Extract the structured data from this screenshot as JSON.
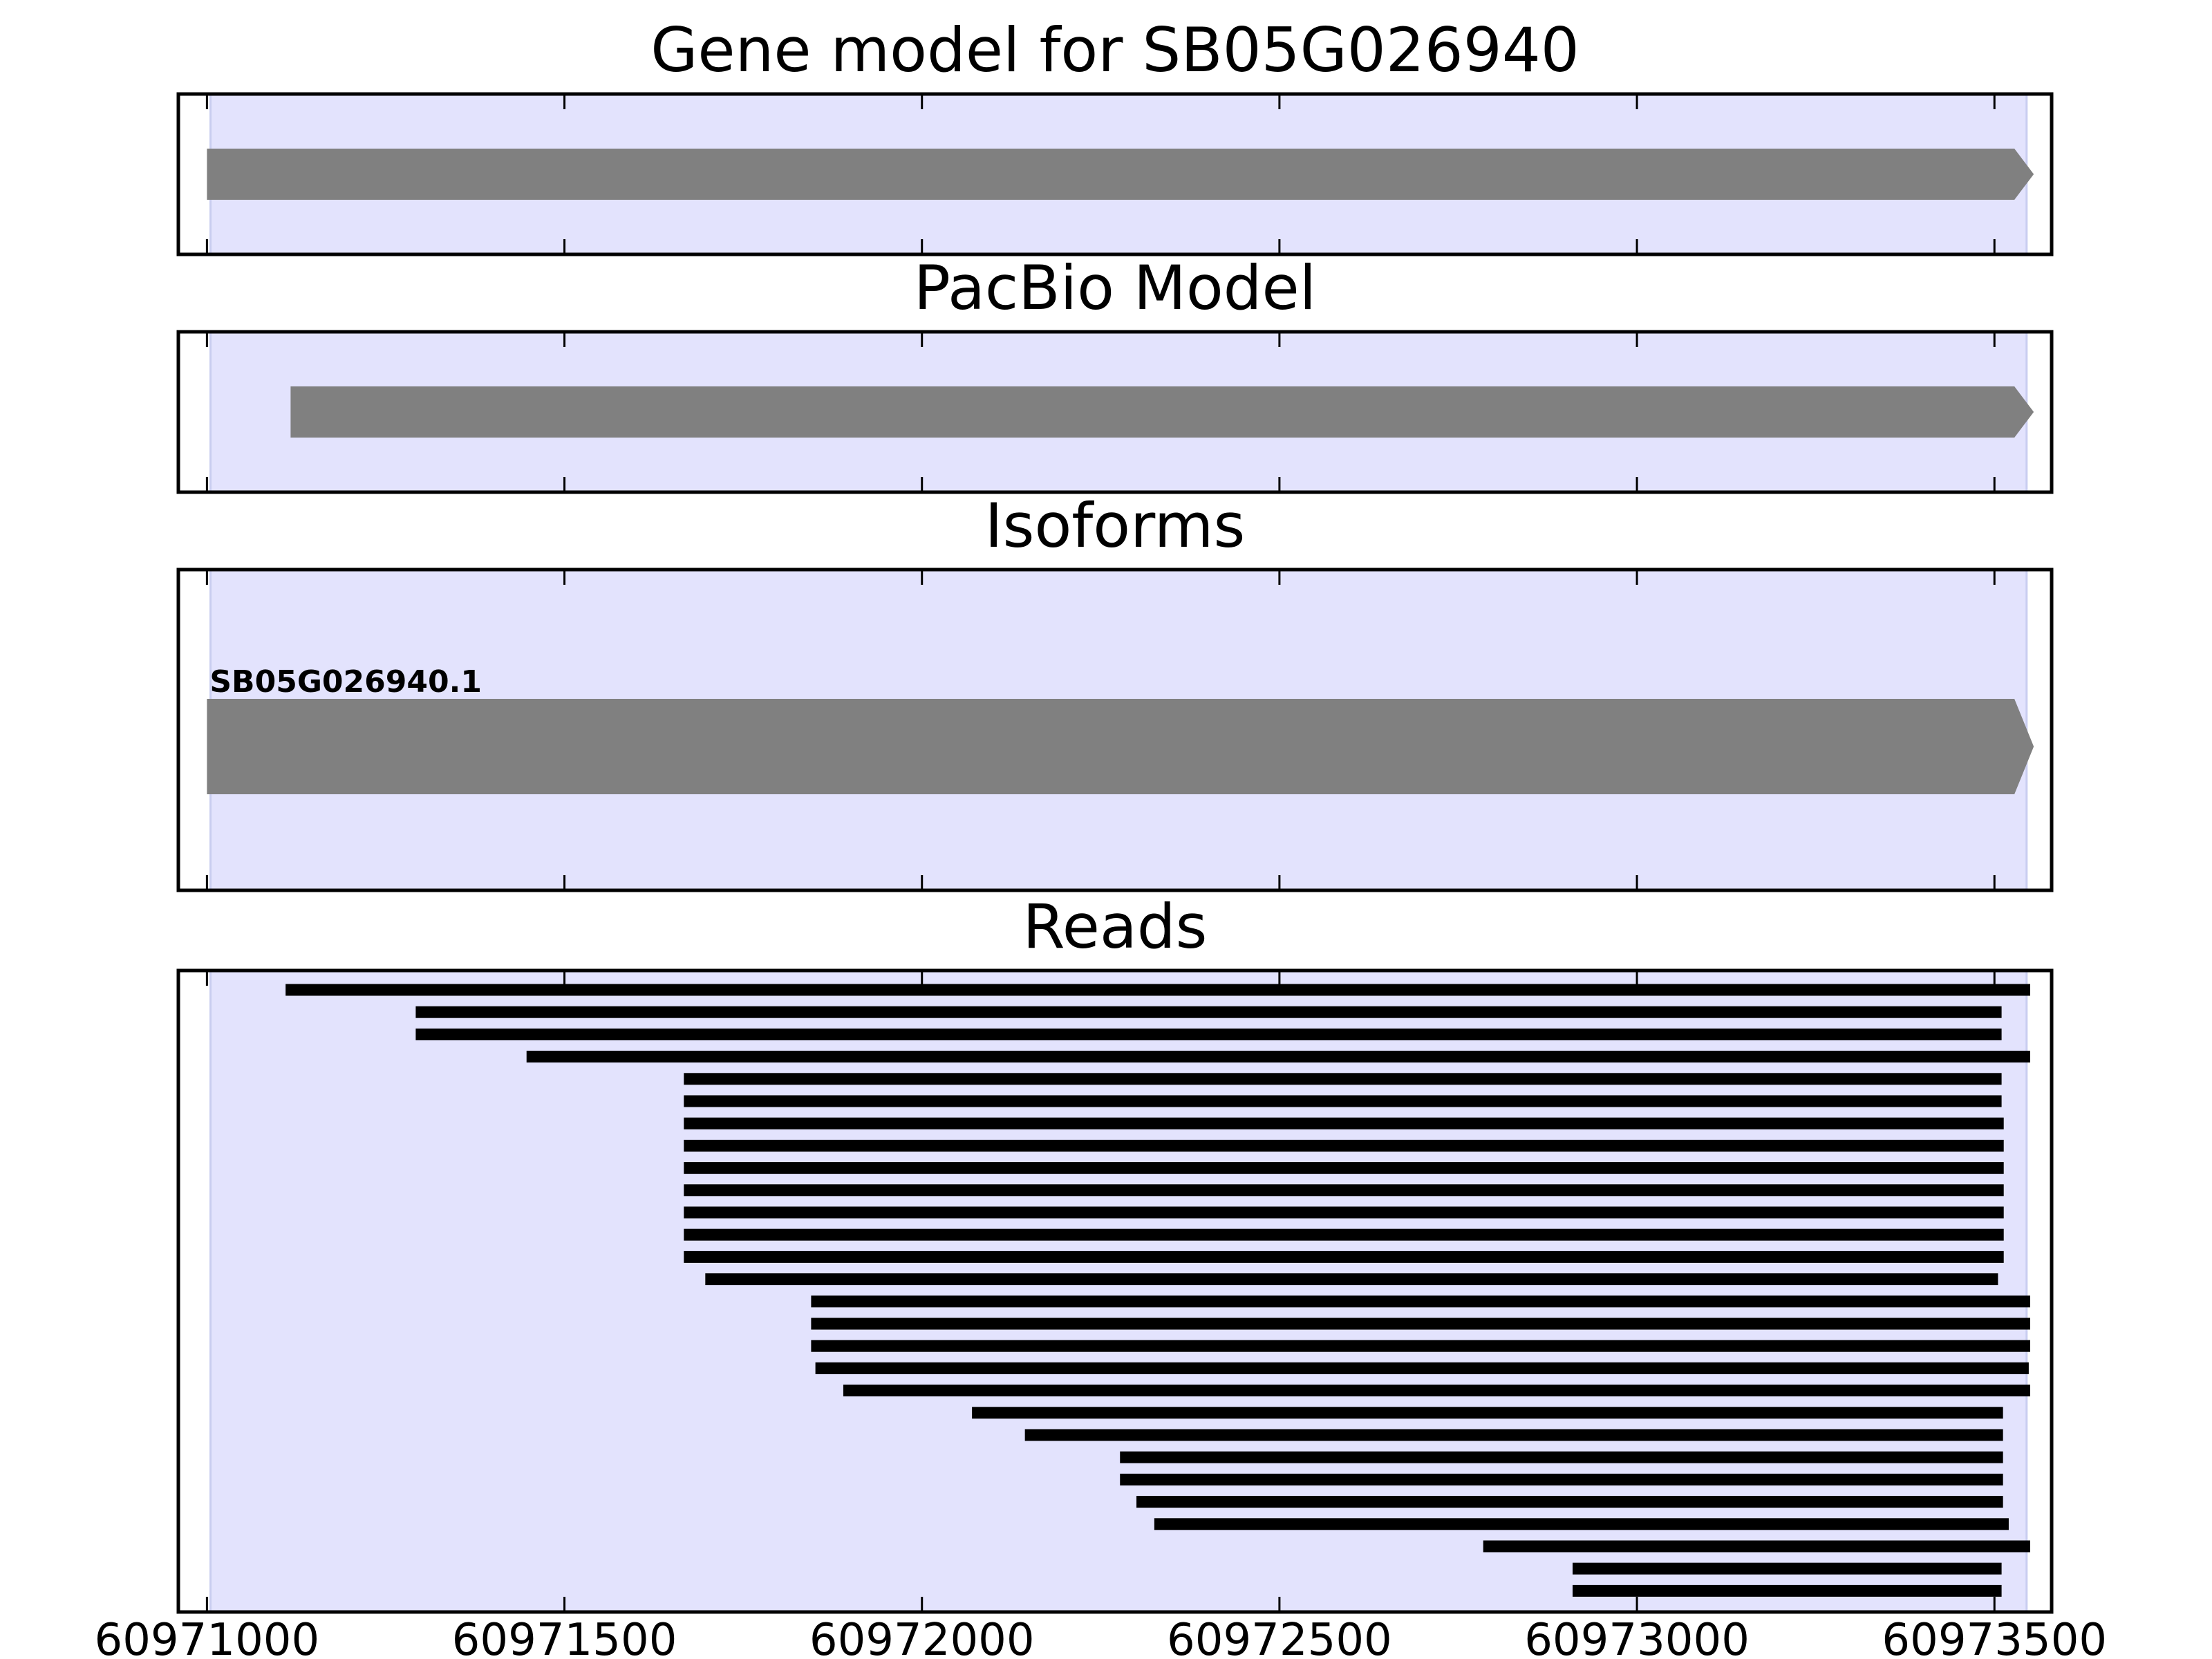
{
  "chart_data": {
    "type": "gene-track",
    "xlim": [
      60970960,
      60973580
    ],
    "x_ticks": [
      "60971000",
      "60971500",
      "60972000",
      "60972500",
      "60973000",
      "60973500"
    ],
    "shaded_region": {
      "start": 60971005,
      "end": 60973545,
      "color": "#e3e3fd",
      "edge_color": "#c9cdf0"
    },
    "feature_color": "#808080",
    "read_color": "#000000",
    "panels": [
      {
        "title": "Gene model for SB05G026940",
        "features": [
          {
            "start": 60971000,
            "end": 60973555,
            "strand": "+"
          }
        ]
      },
      {
        "title": "PacBio Model",
        "features": [
          {
            "start": 60971117,
            "end": 60973555,
            "strand": "+"
          }
        ]
      },
      {
        "title": "Isoforms",
        "features": [
          {
            "label": "SB05G026940.1",
            "start": 60971000,
            "end": 60973555,
            "strand": "+"
          }
        ]
      },
      {
        "title": "Reads",
        "reads": [
          {
            "start": 60971110,
            "end": 60973550
          },
          {
            "start": 60971292,
            "end": 60973510
          },
          {
            "start": 60971292,
            "end": 60973510
          },
          {
            "start": 60971447,
            "end": 60973550
          },
          {
            "start": 60971667,
            "end": 60973510
          },
          {
            "start": 60971667,
            "end": 60973510
          },
          {
            "start": 60971667,
            "end": 60973513
          },
          {
            "start": 60971667,
            "end": 60973513
          },
          {
            "start": 60971667,
            "end": 60973513
          },
          {
            "start": 60971667,
            "end": 60973513
          },
          {
            "start": 60971667,
            "end": 60973513
          },
          {
            "start": 60971667,
            "end": 60973513
          },
          {
            "start": 60971667,
            "end": 60973513
          },
          {
            "start": 60971697,
            "end": 60973505
          },
          {
            "start": 60971845,
            "end": 60973550
          },
          {
            "start": 60971845,
            "end": 60973550
          },
          {
            "start": 60971845,
            "end": 60973550
          },
          {
            "start": 60971851,
            "end": 60973548
          },
          {
            "start": 60971890,
            "end": 60973550
          },
          {
            "start": 60972070,
            "end": 60973512
          },
          {
            "start": 60972144,
            "end": 60973512
          },
          {
            "start": 60972277,
            "end": 60973512
          },
          {
            "start": 60972277,
            "end": 60973512
          },
          {
            "start": 60972300,
            "end": 60973512
          },
          {
            "start": 60972325,
            "end": 60973520
          },
          {
            "start": 60972785,
            "end": 60973550
          },
          {
            "start": 60972910,
            "end": 60973510
          },
          {
            "start": 60972910,
            "end": 60973510
          }
        ]
      }
    ]
  }
}
